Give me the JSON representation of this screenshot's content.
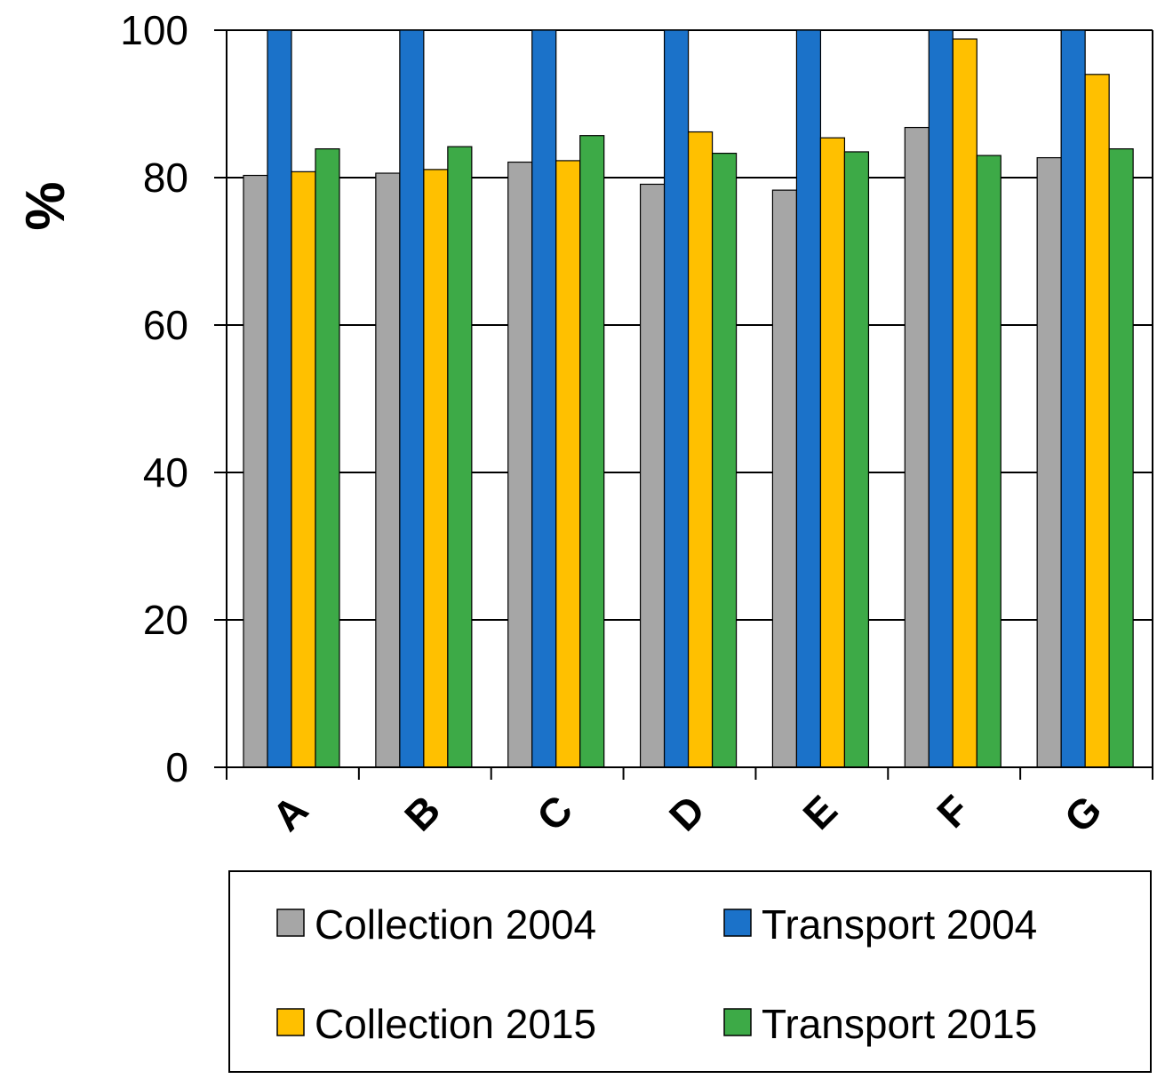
{
  "chart_data": {
    "type": "bar",
    "title": "",
    "xlabel": "",
    "ylabel": "%",
    "ylim": [
      0,
      100
    ],
    "yticks": [
      0,
      20,
      40,
      60,
      80,
      100
    ],
    "grid": true,
    "legend_position": "bottom",
    "categories": [
      "A",
      "B",
      "C",
      "D",
      "E",
      "F",
      "G"
    ],
    "series": [
      {
        "name": "Collection 2004",
        "color": "#a6a6a6",
        "values": [
          80.3,
          80.6,
          82.1,
          79.1,
          78.3,
          86.8,
          82.7
        ]
      },
      {
        "name": "Transport 2004",
        "color": "#1b72c9",
        "values": [
          100,
          100,
          100,
          100,
          100,
          100,
          100
        ]
      },
      {
        "name": "Collection 2015",
        "color": "#ffc000",
        "values": [
          80.8,
          81.1,
          82.3,
          86.2,
          85.4,
          98.8,
          94.0
        ]
      },
      {
        "name": "Transport 2015",
        "color": "#3daa47",
        "values": [
          83.9,
          84.2,
          85.7,
          83.3,
          83.5,
          83.0,
          83.9
        ]
      }
    ]
  }
}
